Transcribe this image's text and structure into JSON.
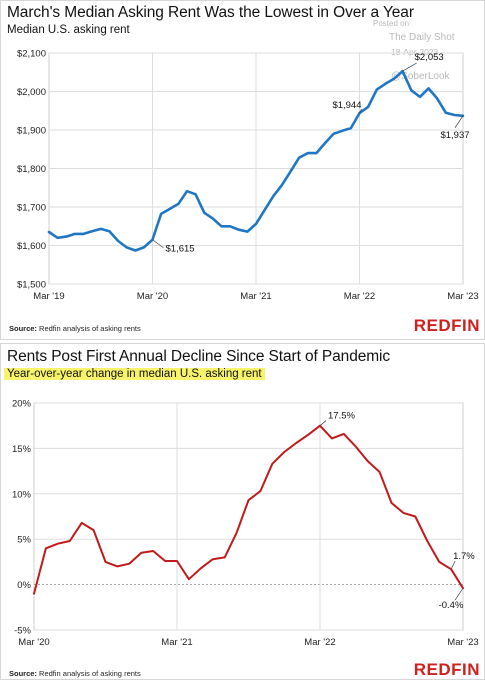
{
  "top": {
    "title": "March's Median Asking Rent Was the Lowest in Over a Year",
    "subtitle": "Median U.S. asking rent",
    "source_prefix": "Source:",
    "source_text": " Redfin analysis of asking rents",
    "brand": "REDFIN",
    "watermark": {
      "l1": "Posted on",
      "l2": "The Daily Shot",
      "l3": "18-Apr-2023",
      "l4": "@SoberLook"
    }
  },
  "bottom": {
    "title": "Rents Post First Annual Decline Since Start of Pandemic",
    "subtitle": "Year-over-year change in median U.S. asking rent",
    "source_prefix": "Source:",
    "source_text": " Redfin analysis of asking rents",
    "brand": "REDFIN"
  },
  "colors": {
    "rent_line": "#1f77c4",
    "yoy_line": "#c21a1a",
    "grid": "#dddddd",
    "brand": "#d0201e",
    "highlight": "#f7f46b"
  },
  "chart_data": [
    {
      "type": "line",
      "title": "March's Median Asking Rent Was the Lowest in Over a Year",
      "subtitle": "Median U.S. asking rent",
      "x_tick_labels": [
        "Mar '19",
        "Mar '20",
        "Mar '21",
        "Mar '22",
        "Mar '23"
      ],
      "y_tick_labels": [
        "$1,500",
        "$1,600",
        "$1,700",
        "$1,800",
        "$1,900",
        "$2,000",
        "$2,100"
      ],
      "ylim": [
        1500,
        2100
      ],
      "grid": true,
      "series": [
        {
          "values": [
            1635,
            1620,
            1623,
            1630,
            1630,
            1637,
            1643,
            1637,
            1612,
            1595,
            1587,
            1595,
            1615,
            1682,
            1695,
            1708,
            1741,
            1733,
            1685,
            1670,
            1650,
            1650,
            1641,
            1636,
            1656,
            1692,
            1728,
            1757,
            1792,
            1828,
            1840,
            1840,
            1866,
            1890,
            1898,
            1905,
            1944,
            1960,
            2005,
            2020,
            2033,
            2053,
            2003,
            1986,
            2008,
            1982,
            1945,
            1939,
            1937
          ]
        }
      ],
      "annotations": [
        {
          "index": 12,
          "label": "$1,615"
        },
        {
          "index": 36,
          "label": "$1,944"
        },
        {
          "index": 41,
          "label": "$2,053"
        },
        {
          "index": 48,
          "label": "$1,937"
        }
      ]
    },
    {
      "type": "line",
      "title": "Rents Post First Annual Decline Since Start of Pandemic",
      "subtitle": "Year-over-year change in median U.S. asking rent",
      "x_tick_labels": [
        "Mar '20",
        "Mar '21",
        "Mar '22",
        "Mar '23"
      ],
      "y_tick_labels": [
        "-5%",
        "0%",
        "5%",
        "10%",
        "15%",
        "20%"
      ],
      "ylim": [
        -5,
        20
      ],
      "grid": true,
      "series": [
        {
          "values": [
            -1.0,
            4.0,
            4.5,
            4.8,
            6.8,
            6.0,
            2.5,
            2.0,
            2.3,
            3.5,
            3.7,
            2.6,
            2.6,
            0.6,
            1.8,
            2.8,
            3.0,
            5.7,
            9.3,
            10.3,
            13.3,
            14.6,
            15.6,
            16.5,
            17.5,
            16.1,
            16.6,
            15.2,
            13.6,
            12.4,
            9.0,
            7.9,
            7.5,
            4.8,
            2.5,
            1.7,
            -0.4
          ]
        }
      ],
      "annotations": [
        {
          "index": 24,
          "label": "17.5%"
        },
        {
          "index": 35,
          "label": "1.7%"
        },
        {
          "index": 36,
          "label": "-0.4%"
        }
      ]
    }
  ]
}
